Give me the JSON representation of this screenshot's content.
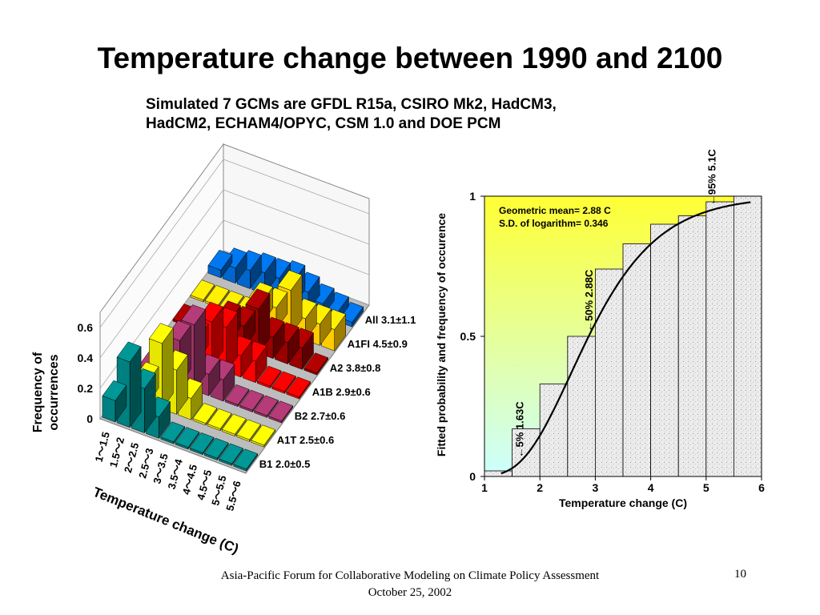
{
  "slide": {
    "title": "Temperature change between 1990 and 2100",
    "subtitle_line1": "Simulated 7 GCMs are GFDL R15a, CSIRO Mk2, HadCM3,",
    "subtitle_line2": "HadCM2, ECHAM4/OPYC, CSM 1.0 and DOE PCM",
    "footer_line1": "Asia-Pacific Forum for Collaborative Modeling on Climate Policy Assessment",
    "footer_line2": "October 25, 2002",
    "page_number": "10"
  },
  "chart_data": [
    {
      "type": "bar",
      "subtype": "3d-bar",
      "ylabel": "Frequency of occurrences",
      "xlabel": "Temperature change (C)",
      "yticks": [
        "0",
        "0.2",
        "0.4",
        "0.6"
      ],
      "ylim": [
        0,
        0.6
      ],
      "categories": [
        "1～1.5",
        "1.5～2",
        "2～2.5",
        "2.5～3",
        "3～3.5",
        "3.5～4",
        "4～4.5",
        "4.5～5",
        "5～5.5",
        "5.5～6"
      ],
      "series": [
        {
          "name": "B1  2.0±0.5",
          "color": "#008080",
          "values": [
            0.14,
            0.43,
            0.29,
            0.14,
            0,
            0,
            0,
            0,
            0,
            0
          ]
        },
        {
          "name": "A1T  2.5±0.6",
          "color": "#e6e600",
          "values": [
            0,
            0.14,
            0.43,
            0.29,
            0.14,
            0,
            0,
            0,
            0,
            0
          ]
        },
        {
          "name": "B2  2.7±0.6",
          "color": "#993366",
          "values": [
            0,
            0,
            0.29,
            0.43,
            0.14,
            0.14,
            0,
            0,
            0,
            0
          ]
        },
        {
          "name": "A1B  2.9±0.6",
          "color": "#ff0000",
          "values": [
            0,
            0,
            0.14,
            0.29,
            0.29,
            0.14,
            0.14,
            0,
            0,
            0
          ]
        },
        {
          "name": "A2  3.8±0.8",
          "color": "#990000",
          "values": [
            0,
            0,
            0,
            0.14,
            0.14,
            0.29,
            0.14,
            0.14,
            0.14,
            0
          ]
        },
        {
          "name": "A1FI  4.5±0.9",
          "color": "#ffcc00",
          "values": [
            0,
            0,
            0,
            0,
            0.14,
            0.14,
            0.29,
            0.14,
            0.14,
            0.14
          ]
        },
        {
          "name": "All  3.1±1.1",
          "color": "#0066cc",
          "values": [
            0.05,
            0.1,
            0.12,
            0.14,
            0.14,
            0.16,
            0.12,
            0.08,
            0.06,
            0.03
          ]
        }
      ]
    },
    {
      "type": "bar",
      "subtype": "cumulative-histogram-with-fitted-curve",
      "xlabel": "Temperature change (C)",
      "ylabel": "Fitted probability and frequency of occurence",
      "xlim": [
        1,
        6
      ],
      "ylim": [
        0,
        1
      ],
      "xticks": [
        "1",
        "2",
        "3",
        "4",
        "5",
        "6"
      ],
      "yticks": [
        "0",
        "0.5",
        "1"
      ],
      "bins": [
        {
          "x0": 1,
          "x1": 1.5,
          "value": 0.02
        },
        {
          "x0": 1.5,
          "x1": 2,
          "value": 0.17
        },
        {
          "x0": 2,
          "x1": 2.5,
          "value": 0.33
        },
        {
          "x0": 2.5,
          "x1": 3,
          "value": 0.5
        },
        {
          "x0": 3,
          "x1": 3.5,
          "value": 0.74
        },
        {
          "x0": 3.5,
          "x1": 4,
          "value": 0.83
        },
        {
          "x0": 4,
          "x1": 4.5,
          "value": 0.9
        },
        {
          "x0": 4.5,
          "x1": 5,
          "value": 0.93
        },
        {
          "x0": 5,
          "x1": 5.5,
          "value": 0.98
        },
        {
          "x0": 5.5,
          "x1": 6,
          "value": 1.0
        }
      ],
      "fitted_curve": {
        "geometric_mean": 2.88,
        "sd_log": 0.346,
        "x_range": [
          1.3,
          5.8
        ]
      },
      "annotations": {
        "stats_line1": "Geometric mean= 2.88 C",
        "stats_line2": "S.D. of  logarithm= 0.346",
        "p5": {
          "label": "5% 1.63C",
          "x": 1.63
        },
        "p50": {
          "label": "50% 2.88C",
          "x": 2.88
        },
        "p95": {
          "label": "95% 5.1C",
          "x": 5.1
        }
      },
      "background_gradient": [
        "#ffff33",
        "#ccffff"
      ]
    }
  ]
}
